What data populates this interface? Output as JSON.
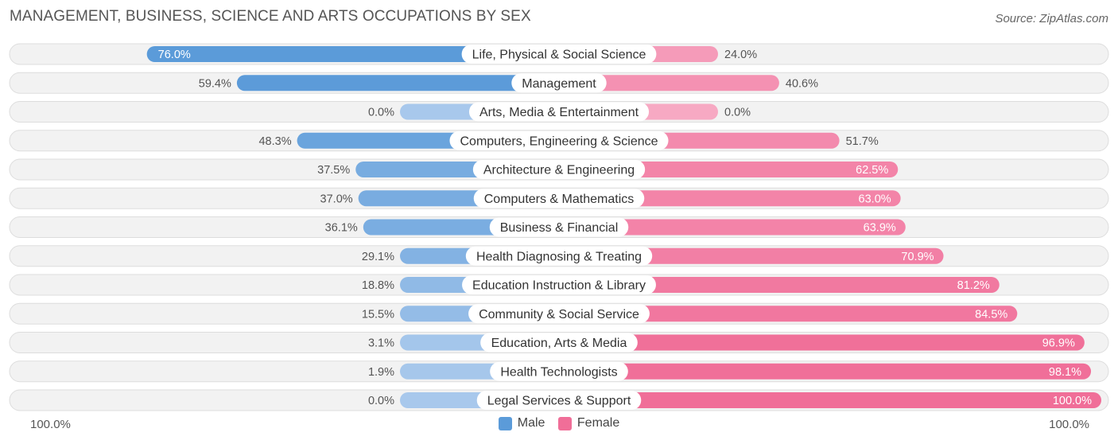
{
  "title": "MANAGEMENT, BUSINESS, SCIENCE AND ARTS OCCUPATIONS BY SEX",
  "source": "Source: ZipAtlas.com",
  "colors": {
    "male": "#5b9bd9",
    "male_light": "#a8c8ec",
    "female": "#f06e98",
    "female_light": "#f7a9c3"
  },
  "axis": {
    "left_label": "100.0%",
    "right_label": "100.0%"
  },
  "legend": {
    "male_label": "Male",
    "female_label": "Female"
  },
  "chart_data": {
    "type": "bar",
    "orientation": "horizontal-diverging",
    "title": "MANAGEMENT, BUSINESS, SCIENCE AND ARTS OCCUPATIONS BY SEX",
    "xlim": [
      -100,
      100
    ],
    "legend_position": "bottom",
    "categories": [
      "Life, Physical & Social Science",
      "Management",
      "Arts, Media & Entertainment",
      "Computers, Engineering & Science",
      "Architecture & Engineering",
      "Computers & Mathematics",
      "Business & Financial",
      "Health Diagnosing & Treating",
      "Education Instruction & Library",
      "Community & Social Service",
      "Education, Arts & Media",
      "Health Technologists",
      "Legal Services & Support"
    ],
    "series": [
      {
        "name": "Male",
        "values": [
          76.0,
          59.4,
          0.0,
          48.3,
          37.5,
          37.0,
          36.1,
          29.1,
          18.8,
          15.5,
          3.1,
          1.9,
          0.0
        ],
        "labels": [
          "76.0%",
          "59.4%",
          "0.0%",
          "48.3%",
          "37.5%",
          "37.0%",
          "36.1%",
          "29.1%",
          "18.8%",
          "15.5%",
          "3.1%",
          "1.9%",
          "0.0%"
        ]
      },
      {
        "name": "Female",
        "values": [
          24.0,
          40.6,
          0.0,
          51.7,
          62.5,
          63.0,
          63.9,
          70.9,
          81.2,
          84.5,
          96.9,
          98.1,
          100.0
        ],
        "labels": [
          "24.0%",
          "40.6%",
          "0.0%",
          "51.7%",
          "62.5%",
          "63.0%",
          "63.9%",
          "70.9%",
          "81.2%",
          "84.5%",
          "96.9%",
          "98.1%",
          "100.0%"
        ]
      }
    ]
  }
}
